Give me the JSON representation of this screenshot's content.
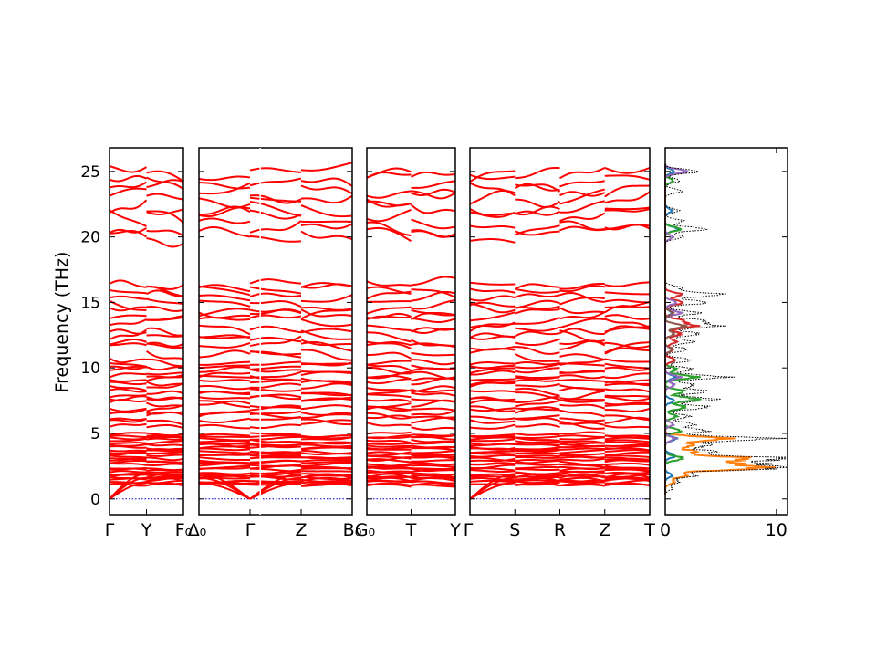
{
  "chart_data": {
    "type": "line",
    "ylabel": "Frequency (THz)",
    "ylim": [
      -1.2,
      26.8
    ],
    "yticks": [
      0,
      5,
      10,
      15,
      20,
      25
    ],
    "panels": [
      {
        "xticks": [
          "Γ",
          "Y",
          "F₀"
        ],
        "breaks": []
      },
      {
        "xticks": [
          "Δ₀",
          "Γ",
          "Z",
          "B₀"
        ],
        "breaks": [
          0.4
        ]
      },
      {
        "xticks": [
          "G₀",
          "T",
          "Y"
        ],
        "breaks": []
      },
      {
        "xticks": [
          "Γ",
          "S",
          "R",
          "Z",
          "T"
        ],
        "breaks": []
      }
    ],
    "band_series": {
      "name": "phonon bands",
      "color": "#ff0000",
      "zero_line_color": "#0000cc",
      "acoustic_max_thz": [
        1.2,
        1.6,
        1.9
      ],
      "optical_groups": [
        {
          "range_thz": [
            1.0,
            5.0
          ],
          "count": 24
        },
        {
          "range_thz": [
            5.5,
            10.6
          ],
          "count": 16
        },
        {
          "range_thz": [
            10.8,
            16.6
          ],
          "count": 12
        },
        {
          "range_thz": [
            19.8,
            25.3
          ],
          "count": 8
        }
      ]
    },
    "dos": {
      "xlim": [
        0,
        11
      ],
      "xticks": [
        0,
        10
      ],
      "peaks_total": [
        {
          "f": 0.8,
          "a": 0.6
        },
        {
          "f": 1.3,
          "a": 1.2
        },
        {
          "f": 1.8,
          "a": 2.8
        },
        {
          "f": 2.35,
          "a": 10.2
        },
        {
          "f": 2.7,
          "a": 7.5
        },
        {
          "f": 3.1,
          "a": 10.6
        },
        {
          "f": 3.6,
          "a": 4.5
        },
        {
          "f": 4.1,
          "a": 4.0
        },
        {
          "f": 4.6,
          "a": 9.7
        },
        {
          "f": 5.2,
          "a": 3.8
        },
        {
          "f": 5.7,
          "a": 2.6
        },
        {
          "f": 6.3,
          "a": 2.2
        },
        {
          "f": 7.0,
          "a": 3.9
        },
        {
          "f": 7.6,
          "a": 4.5
        },
        {
          "f": 8.2,
          "a": 3.8
        },
        {
          "f": 8.7,
          "a": 2.6
        },
        {
          "f": 9.3,
          "a": 5.3
        },
        {
          "f": 9.9,
          "a": 2.5
        },
        {
          "f": 10.6,
          "a": 2.3
        },
        {
          "f": 11.4,
          "a": 2.0
        },
        {
          "f": 12.0,
          "a": 2.5
        },
        {
          "f": 12.6,
          "a": 3.1
        },
        {
          "f": 13.2,
          "a": 4.5
        },
        {
          "f": 13.6,
          "a": 3.5
        },
        {
          "f": 14.2,
          "a": 3.1
        },
        {
          "f": 15.0,
          "a": 3.8
        },
        {
          "f": 15.6,
          "a": 5.1
        },
        {
          "f": 16.1,
          "a": 1.5
        },
        {
          "f": 20.0,
          "a": 1.6
        },
        {
          "f": 20.6,
          "a": 3.7
        },
        {
          "f": 21.2,
          "a": 1.6
        },
        {
          "f": 22.0,
          "a": 1.2
        },
        {
          "f": 23.5,
          "a": 1.5
        },
        {
          "f": 24.3,
          "a": 1.3
        },
        {
          "f": 25.0,
          "a": 3.0
        }
      ],
      "projected": [
        {
          "color": "#1f77b4",
          "peaks": [
            {
              "f": 1.8,
              "a": 0.6
            },
            {
              "f": 3.3,
              "a": 0.9
            },
            {
              "f": 4.6,
              "a": 1.0
            },
            {
              "f": 7.5,
              "a": 0.8
            },
            {
              "f": 9.3,
              "a": 0.9
            },
            {
              "f": 14.2,
              "a": 0.6
            },
            {
              "f": 20.6,
              "a": 1.2
            },
            {
              "f": 22.0,
              "a": 0.6
            },
            {
              "f": 25.0,
              "a": 0.8
            }
          ]
        },
        {
          "color": "#ff7f0e",
          "peaks": [
            {
              "f": 1.3,
              "a": 0.8
            },
            {
              "f": 1.8,
              "a": 2.0
            },
            {
              "f": 2.35,
              "a": 8.3
            },
            {
              "f": 2.7,
              "a": 5.5
            },
            {
              "f": 3.1,
              "a": 7.3
            },
            {
              "f": 3.6,
              "a": 2.7
            },
            {
              "f": 4.1,
              "a": 2.5
            },
            {
              "f": 4.6,
              "a": 5.5
            }
          ]
        },
        {
          "color": "#2ca02c",
          "peaks": [
            {
              "f": 3.1,
              "a": 1.6
            },
            {
              "f": 5.2,
              "a": 1.4
            },
            {
              "f": 6.3,
              "a": 1.0
            },
            {
              "f": 7.0,
              "a": 1.8
            },
            {
              "f": 7.6,
              "a": 2.9
            },
            {
              "f": 8.2,
              "a": 1.7
            },
            {
              "f": 9.3,
              "a": 2.7
            },
            {
              "f": 9.9,
              "a": 1.0
            },
            {
              "f": 20.6,
              "a": 1.4
            },
            {
              "f": 24.3,
              "a": 0.7
            }
          ]
        },
        {
          "color": "#d62728",
          "peaks": [
            {
              "f": 10.6,
              "a": 0.9
            },
            {
              "f": 11.4,
              "a": 0.7
            },
            {
              "f": 12.0,
              "a": 1.0
            },
            {
              "f": 12.6,
              "a": 1.4
            },
            {
              "f": 13.2,
              "a": 2.6
            },
            {
              "f": 13.6,
              "a": 1.6
            },
            {
              "f": 15.0,
              "a": 1.6
            },
            {
              "f": 15.6,
              "a": 1.5
            }
          ]
        },
        {
          "color": "#9467bd",
          "peaks": [
            {
              "f": 4.6,
              "a": 0.8
            },
            {
              "f": 5.7,
              "a": 0.7
            },
            {
              "f": 8.7,
              "a": 0.8
            },
            {
              "f": 9.3,
              "a": 1.3
            },
            {
              "f": 14.2,
              "a": 1.4
            },
            {
              "f": 15.0,
              "a": 1.0
            },
            {
              "f": 20.0,
              "a": 0.7
            },
            {
              "f": 25.0,
              "a": 2.0
            }
          ]
        },
        {
          "color": "#8c564b",
          "peaks": [
            {
              "f": 11.4,
              "a": 0.6
            },
            {
              "f": 12.6,
              "a": 0.8
            },
            {
              "f": 13.2,
              "a": 1.7
            },
            {
              "f": 14.2,
              "a": 0.7
            }
          ]
        }
      ]
    }
  }
}
